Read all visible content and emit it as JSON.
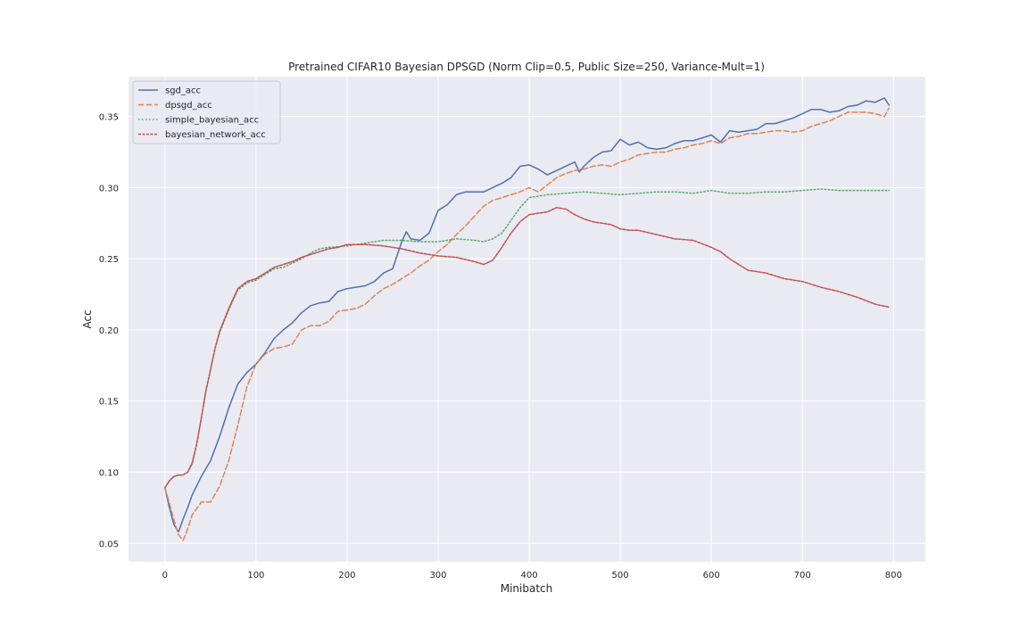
{
  "chart_data": {
    "type": "line",
    "title": "Pretrained CIFAR10 Bayesian DPSGD (Norm Clip=0.5, Public Size=250, Variance-Mult=1)",
    "xlabel": "Minibatch",
    "ylabel": "Acc",
    "xlim": [
      -40,
      835
    ],
    "ylim": [
      0.037,
      0.378
    ],
    "xticks": [
      0,
      100,
      200,
      300,
      400,
      500,
      600,
      700,
      800
    ],
    "xtick_labels": [
      "0",
      "100",
      "200",
      "300",
      "400",
      "500",
      "600",
      "700",
      "800"
    ],
    "yticks": [
      0.05,
      0.1,
      0.15,
      0.2,
      0.25,
      0.3,
      0.35
    ],
    "ytick_labels": [
      "0.05",
      "0.10",
      "0.15",
      "0.20",
      "0.25",
      "0.30",
      "0.35"
    ],
    "grid": true,
    "legend_position": "top-left",
    "background": "#eaeaf2",
    "series": [
      {
        "name": "sgd_acc",
        "color": "#4c72b0",
        "dash": "solid",
        "x": [
          0,
          5,
          10,
          15,
          20,
          25,
          30,
          40,
          50,
          60,
          70,
          80,
          90,
          100,
          110,
          120,
          130,
          140,
          150,
          160,
          170,
          180,
          190,
          200,
          210,
          220,
          230,
          240,
          250,
          260,
          265,
          270,
          280,
          290,
          300,
          310,
          320,
          330,
          340,
          350,
          360,
          370,
          380,
          390,
          400,
          410,
          420,
          430,
          440,
          450,
          455,
          460,
          470,
          480,
          490,
          500,
          510,
          520,
          530,
          540,
          550,
          560,
          570,
          580,
          590,
          600,
          610,
          620,
          630,
          640,
          650,
          660,
          670,
          680,
          690,
          700,
          710,
          720,
          730,
          740,
          750,
          760,
          770,
          780,
          790,
          795
        ],
        "y": [
          0.089,
          0.075,
          0.063,
          0.058,
          0.067,
          0.075,
          0.084,
          0.097,
          0.108,
          0.125,
          0.145,
          0.162,
          0.17,
          0.176,
          0.184,
          0.194,
          0.2,
          0.205,
          0.212,
          0.217,
          0.219,
          0.22,
          0.227,
          0.229,
          0.23,
          0.231,
          0.234,
          0.24,
          0.243,
          0.262,
          0.269,
          0.264,
          0.263,
          0.268,
          0.284,
          0.288,
          0.295,
          0.297,
          0.297,
          0.297,
          0.3,
          0.303,
          0.307,
          0.315,
          0.316,
          0.313,
          0.309,
          0.312,
          0.315,
          0.318,
          0.311,
          0.315,
          0.321,
          0.325,
          0.326,
          0.334,
          0.33,
          0.332,
          0.328,
          0.327,
          0.328,
          0.331,
          0.333,
          0.333,
          0.335,
          0.337,
          0.332,
          0.34,
          0.339,
          0.34,
          0.341,
          0.345,
          0.345,
          0.347,
          0.349,
          0.352,
          0.355,
          0.355,
          0.353,
          0.354,
          0.357,
          0.358,
          0.361,
          0.36,
          0.363,
          0.358
        ]
      },
      {
        "name": "dpsgd_acc",
        "color": "#dd8452",
        "dash": "dashed",
        "x": [
          0,
          5,
          10,
          15,
          20,
          25,
          30,
          40,
          50,
          60,
          70,
          80,
          90,
          100,
          110,
          120,
          130,
          140,
          150,
          160,
          170,
          180,
          190,
          200,
          210,
          220,
          230,
          240,
          250,
          260,
          270,
          280,
          290,
          300,
          310,
          320,
          330,
          340,
          350,
          360,
          370,
          380,
          390,
          400,
          410,
          420,
          430,
          440,
          450,
          460,
          470,
          480,
          490,
          500,
          510,
          520,
          530,
          540,
          550,
          560,
          570,
          580,
          590,
          600,
          610,
          620,
          630,
          640,
          650,
          660,
          670,
          680,
          690,
          700,
          710,
          720,
          730,
          740,
          750,
          760,
          770,
          780,
          790,
          795
        ],
        "y": [
          0.089,
          0.078,
          0.066,
          0.056,
          0.052,
          0.06,
          0.07,
          0.079,
          0.079,
          0.09,
          0.108,
          0.133,
          0.16,
          0.176,
          0.183,
          0.187,
          0.188,
          0.19,
          0.2,
          0.203,
          0.203,
          0.206,
          0.213,
          0.214,
          0.215,
          0.218,
          0.224,
          0.229,
          0.232,
          0.236,
          0.24,
          0.245,
          0.249,
          0.255,
          0.26,
          0.267,
          0.273,
          0.28,
          0.287,
          0.291,
          0.293,
          0.295,
          0.297,
          0.3,
          0.297,
          0.302,
          0.307,
          0.31,
          0.312,
          0.313,
          0.315,
          0.316,
          0.315,
          0.318,
          0.32,
          0.323,
          0.324,
          0.325,
          0.325,
          0.327,
          0.328,
          0.33,
          0.331,
          0.333,
          0.331,
          0.335,
          0.336,
          0.338,
          0.338,
          0.339,
          0.34,
          0.34,
          0.339,
          0.34,
          0.343,
          0.345,
          0.347,
          0.35,
          0.353,
          0.353,
          0.353,
          0.352,
          0.35,
          0.356
        ]
      },
      {
        "name": "simple_bayesian_acc",
        "color": "#55a868",
        "dash": "dotted",
        "x": [
          0,
          5,
          10,
          15,
          20,
          25,
          30,
          35,
          40,
          45,
          50,
          55,
          60,
          70,
          80,
          90,
          100,
          110,
          120,
          130,
          140,
          150,
          160,
          170,
          180,
          200,
          220,
          240,
          260,
          280,
          300,
          320,
          340,
          350,
          360,
          370,
          380,
          390,
          400,
          420,
          440,
          460,
          480,
          500,
          520,
          540,
          560,
          580,
          600,
          620,
          640,
          660,
          680,
          700,
          720,
          740,
          760,
          780,
          795
        ],
        "y": [
          0.089,
          0.094,
          0.097,
          0.098,
          0.098,
          0.1,
          0.107,
          0.12,
          0.138,
          0.157,
          0.172,
          0.187,
          0.198,
          0.214,
          0.228,
          0.233,
          0.235,
          0.239,
          0.243,
          0.244,
          0.247,
          0.25,
          0.254,
          0.257,
          0.258,
          0.259,
          0.261,
          0.263,
          0.263,
          0.262,
          0.262,
          0.264,
          0.263,
          0.262,
          0.264,
          0.268,
          0.277,
          0.286,
          0.293,
          0.295,
          0.296,
          0.297,
          0.296,
          0.295,
          0.296,
          0.297,
          0.297,
          0.296,
          0.298,
          0.296,
          0.296,
          0.297,
          0.297,
          0.298,
          0.299,
          0.298,
          0.298,
          0.298,
          0.298
        ]
      },
      {
        "name": "bayesian_network_acc",
        "color": "#c44e52",
        "dash": "dashdot",
        "x": [
          0,
          5,
          10,
          15,
          20,
          25,
          30,
          35,
          40,
          45,
          50,
          55,
          60,
          70,
          80,
          90,
          100,
          110,
          120,
          130,
          140,
          150,
          160,
          170,
          180,
          190,
          200,
          220,
          240,
          260,
          280,
          300,
          320,
          340,
          350,
          360,
          370,
          380,
          390,
          400,
          410,
          420,
          430,
          440,
          450,
          460,
          470,
          480,
          490,
          500,
          510,
          520,
          540,
          560,
          580,
          600,
          610,
          620,
          640,
          660,
          680,
          700,
          720,
          740,
          760,
          780,
          795
        ],
        "y": [
          0.089,
          0.094,
          0.097,
          0.098,
          0.098,
          0.1,
          0.106,
          0.12,
          0.138,
          0.157,
          0.172,
          0.187,
          0.199,
          0.215,
          0.229,
          0.234,
          0.236,
          0.24,
          0.244,
          0.246,
          0.248,
          0.251,
          0.253,
          0.255,
          0.257,
          0.258,
          0.26,
          0.26,
          0.259,
          0.257,
          0.254,
          0.252,
          0.251,
          0.248,
          0.246,
          0.249,
          0.258,
          0.268,
          0.276,
          0.281,
          0.282,
          0.283,
          0.286,
          0.285,
          0.281,
          0.278,
          0.276,
          0.275,
          0.274,
          0.271,
          0.27,
          0.27,
          0.267,
          0.264,
          0.263,
          0.258,
          0.255,
          0.25,
          0.242,
          0.24,
          0.236,
          0.234,
          0.23,
          0.227,
          0.223,
          0.218,
          0.216
        ]
      }
    ]
  }
}
